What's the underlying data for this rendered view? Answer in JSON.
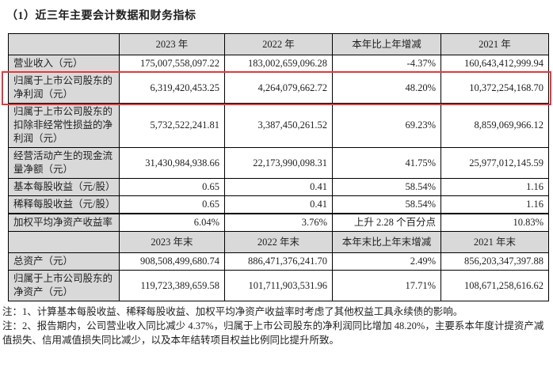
{
  "title": "（1）近三年主要会计数据和财务指标",
  "colors": {
    "cell_gray": "#d9d9d9",
    "highlight_red": "#e03a3e"
  },
  "table": {
    "section1": {
      "headers": [
        "",
        "2023 年",
        "2022 年",
        "本年比上年增减",
        "2021 年"
      ],
      "rows": [
        {
          "label": "营业收入（元）",
          "values": [
            "175,007,558,097.22",
            "183,002,659,096.28",
            "-4.37%",
            "160,643,412,999.94"
          ]
        },
        {
          "label": "归属于上市公司股东的净利润（元）",
          "values": [
            "6,319,420,453.25",
            "4,264,079,662.72",
            "48.20%",
            "10,372,254,168.70"
          ],
          "highlighted": true
        },
        {
          "label": "归属于上市公司股东的扣除非经常性损益的净利润（元）",
          "values": [
            "5,732,522,241.81",
            "3,387,450,261.52",
            "69.23%",
            "8,859,069,966.12"
          ]
        },
        {
          "label": "经营活动产生的现金流量净额（元）",
          "values": [
            "31,430,984,938.66",
            "22,173,990,098.31",
            "41.75%",
            "25,977,012,145.59"
          ]
        },
        {
          "label": "基本每股收益（元/股）",
          "values": [
            "0.65",
            "0.41",
            "58.54%",
            "1.16"
          ]
        },
        {
          "label": "稀释每股收益（元/股）",
          "values": [
            "0.65",
            "0.41",
            "58.54%",
            "1.16"
          ]
        },
        {
          "label": "加权平均净资产收益率",
          "values": [
            "6.04%",
            "3.76%",
            "上升 2.28 个百分点",
            "10.83%"
          ]
        }
      ]
    },
    "section2": {
      "headers": [
        "",
        "2023 年末",
        "2022 年末",
        "本年末比上年末增减",
        "2021 年末"
      ],
      "rows": [
        {
          "label": "总资产（元）",
          "values": [
            "908,508,499,680.74",
            "886,471,376,241.70",
            "2.49%",
            "856,203,347,397.88"
          ]
        },
        {
          "label": "归属于上市公司股东的净资产（元）",
          "values": [
            "119,723,389,659.58",
            "101,711,903,531.96",
            "17.71%",
            "108,671,258,616.62"
          ]
        }
      ]
    }
  },
  "notes": [
    "注：1、计算基本每股收益、稀释每股收益、加权平均净资产收益率时考虑了其他权益工具永续债的影响。",
    "注：2、报告期内，公司营业收入同比减少 4.37%，归属于上市公司股东的净利润同比增加 48.20%，主要系本年度计提资产减值损失、信用减值损失同比减少，以及本年结转项目权益比例同比提升所致。"
  ]
}
